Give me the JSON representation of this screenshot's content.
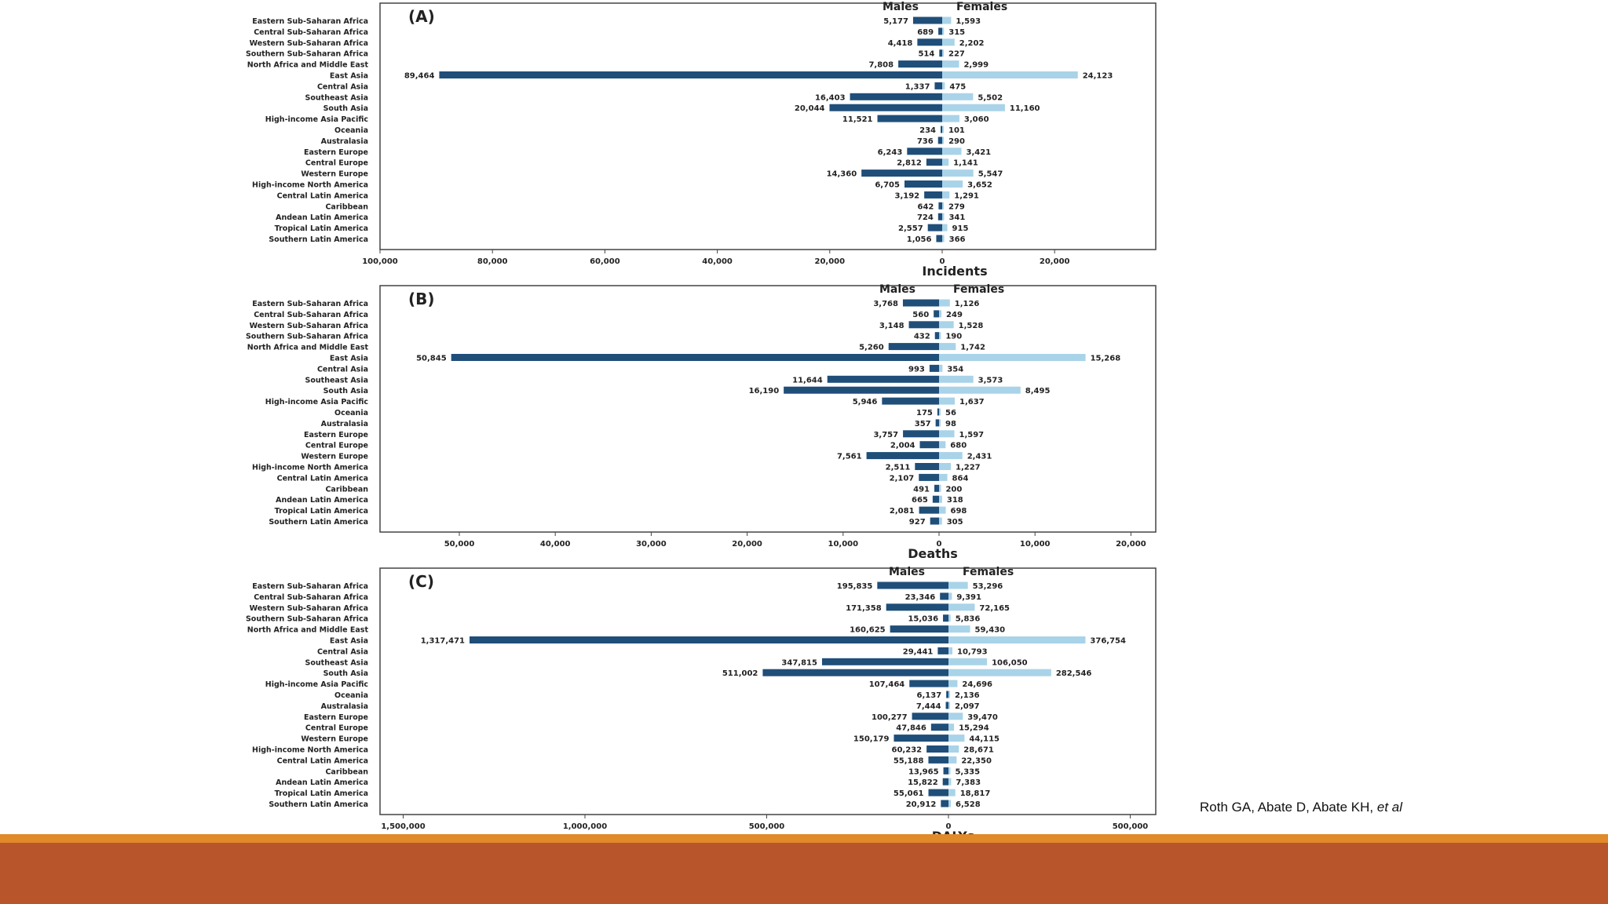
{
  "colors": {
    "males": "#1f4e79",
    "females": "#a9d3e8",
    "footer_line": "#e08a2a",
    "footer_band": "#b9552a"
  },
  "legend": {
    "males": "Males",
    "females": "Females"
  },
  "citation": {
    "authors": "Roth GA, Abate D, Abate KH,",
    "etal": "et al"
  },
  "regions": [
    "Eastern Sub-Saharan Africa",
    "Central Sub-Saharan Africa",
    "Western Sub-Saharan Africa",
    "Southern Sub-Saharan Africa",
    "North Africa and Middle East",
    "East Asia",
    "Central Asia",
    "Southeast Asia",
    "South Asia",
    "High-income Asia Pacific",
    "Oceania",
    "Australasia",
    "Eastern Europe",
    "Central Europe",
    "Western Europe",
    "High-income North America",
    "Central Latin America",
    "Caribbean",
    "Andean Latin America",
    "Tropical Latin America",
    "Southern Latin America"
  ],
  "chart_data": [
    {
      "type": "bar",
      "orientation": "horizontal-back-to-back",
      "panel_label": "(A)",
      "xlabel": "Incidents",
      "xlim": [
        -100000,
        20000
      ],
      "ticks": [
        -100000,
        -80000,
        -60000,
        -40000,
        -20000,
        0,
        20000
      ],
      "tick_labels": [
        "100,000",
        "80,000",
        "60,000",
        "40,000",
        "20,000",
        "0",
        "20,000"
      ],
      "series": [
        {
          "name": "Males",
          "values": [
            5177,
            689,
            4418,
            514,
            7808,
            89464,
            1337,
            16403,
            20044,
            11521,
            234,
            736,
            6243,
            2812,
            14360,
            6705,
            3192,
            642,
            724,
            2557,
            1056
          ],
          "labels": [
            "5,177",
            "689",
            "4,418",
            "514",
            "7,808",
            "89,464",
            "1,337",
            "16,403",
            "20,044",
            "11,521",
            "234",
            "736",
            "6,243",
            "2,812",
            "14,360",
            "6,705",
            "3,192",
            "642",
            "724",
            "2,557",
            "1,056"
          ]
        },
        {
          "name": "Females",
          "values": [
            1593,
            315,
            2202,
            227,
            2999,
            24123,
            475,
            5502,
            11160,
            3060,
            101,
            290,
            3421,
            1141,
            5547,
            3652,
            1291,
            279,
            341,
            915,
            366
          ],
          "labels": [
            "1,593",
            "315",
            "2,202",
            "227",
            "2,999",
            "24,123",
            "475",
            "5,502",
            "11,160",
            "3,060",
            "101",
            "290",
            "3,421",
            "1,141",
            "5,547",
            "3,652",
            "1,291",
            "279",
            "341",
            "915",
            "366"
          ]
        }
      ]
    },
    {
      "type": "bar",
      "orientation": "horizontal-back-to-back",
      "panel_label": "(B)",
      "xlabel": "Deaths",
      "xlim": [
        -56000,
        21000
      ],
      "ticks": [
        -50000,
        -40000,
        -30000,
        -20000,
        -10000,
        0,
        10000,
        20000
      ],
      "tick_labels": [
        "50,000",
        "40,000",
        "30,000",
        "20,000",
        "10,000",
        "0",
        "10,000",
        "20,000"
      ],
      "series": [
        {
          "name": "Males",
          "values": [
            3768,
            560,
            3148,
            432,
            5260,
            50845,
            993,
            11644,
            16190,
            5946,
            175,
            357,
            3757,
            2004,
            7561,
            2511,
            2107,
            491,
            665,
            2081,
            927
          ],
          "labels": [
            "3,768",
            "560",
            "3,148",
            "432",
            "5,260",
            "50,845",
            "993",
            "11,644",
            "16,190",
            "5,946",
            "175",
            "357",
            "3,757",
            "2,004",
            "7,561",
            "2,511",
            "2,107",
            "491",
            "665",
            "2,081",
            "927"
          ]
        },
        {
          "name": "Females",
          "values": [
            1126,
            249,
            1528,
            190,
            1742,
            15268,
            354,
            3573,
            8495,
            1637,
            56,
            98,
            1597,
            680,
            2431,
            1227,
            864,
            200,
            318,
            698,
            305
          ],
          "labels": [
            "1,126",
            "249",
            "1,528",
            "190",
            "1,742",
            "15,268",
            "354",
            "3,573",
            "8,495",
            "1,637",
            "56",
            "98",
            "1,597",
            "680",
            "2,431",
            "1,227",
            "864",
            "200",
            "318",
            "698",
            "305"
          ]
        }
      ]
    },
    {
      "type": "bar",
      "orientation": "horizontal-back-to-back",
      "panel_label": "(C)",
      "xlabel": "DALYs",
      "xlim": [
        -1560000,
        570000
      ],
      "ticks": [
        -1500000,
        -1000000,
        -500000,
        0,
        500000
      ],
      "tick_labels": [
        "1,500,000",
        "1,000,000",
        "500,000",
        "0",
        "500,000"
      ],
      "series": [
        {
          "name": "Males",
          "values": [
            195835,
            23346,
            171358,
            15036,
            160625,
            1317471,
            29441,
            347815,
            511002,
            107464,
            6137,
            7444,
            100277,
            47846,
            150179,
            60232,
            55188,
            13965,
            15822,
            55061,
            20912
          ],
          "labels": [
            "195,835",
            "23,346",
            "171,358",
            "15,036",
            "160,625",
            "1,317,471",
            "29,441",
            "347,815",
            "511,002",
            "107,464",
            "6,137",
            "7,444",
            "100,277",
            "47,846",
            "150,179",
            "60,232",
            "55,188",
            "13,965",
            "15,822",
            "55,061",
            "20,912"
          ]
        },
        {
          "name": "Females",
          "values": [
            53296,
            9391,
            72165,
            5836,
            59430,
            376754,
            10793,
            106050,
            282546,
            24696,
            2136,
            2097,
            39470,
            15294,
            44115,
            28671,
            22350,
            5335,
            7383,
            18817,
            6528
          ],
          "labels": [
            "53,296",
            "9,391",
            "72,165",
            "5,836",
            "59,430",
            "376,754",
            "10,793",
            "106,050",
            "282,546",
            "24,696",
            "2,136",
            "2,097",
            "39,470",
            "15,294",
            "44,115",
            "28,671",
            "22,350",
            "5,335",
            "7,383",
            "18,817",
            "6,528"
          ]
        }
      ]
    }
  ]
}
